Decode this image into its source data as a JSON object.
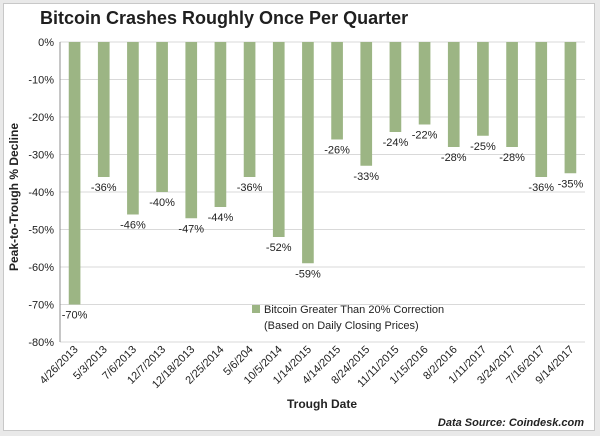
{
  "chart_data": {
    "type": "bar",
    "title": "Bitcoin Crashes Roughly Once Per Quarter",
    "xlabel": "Trough Date",
    "ylabel": "Peak-to-Trough % Decline",
    "source": "Data Source: Coindesk.com",
    "ylim": [
      -80,
      0
    ],
    "yticks": [
      0,
      -10,
      -20,
      -30,
      -40,
      -50,
      -60,
      -70,
      -80
    ],
    "ytick_suffix": "%",
    "grid": true,
    "bar_color": "#9cb584",
    "categories": [
      "4/26/2013",
      "5/3/2013",
      "7/6/2013",
      "12/7/2013",
      "12/18/2013",
      "2/25/2014",
      "5/6/204",
      "10/5/2014",
      "1/14/2015",
      "4/14/2015",
      "8/24/2015",
      "11/11/2015",
      "1/15/2016",
      "8/2/2016",
      "1/11/2017",
      "3/24/2017",
      "7/16/2017",
      "9/14/2017"
    ],
    "series": [
      {
        "name": "Bitcoin Greater Than 20% Correction",
        "values": [
          -70,
          -36,
          -46,
          -40,
          -47,
          -44,
          -36,
          -52,
          -59,
          -26,
          -33,
          -24,
          -22,
          -28,
          -25,
          -28,
          -36,
          -35
        ]
      }
    ],
    "data_labels": [
      "-70%",
      "-36%",
      "-46%",
      "-40%",
      "-47%",
      "-44%",
      "-36%",
      "-52%",
      "-59%",
      "-26%",
      "-33%",
      "-24%",
      "-22%",
      "-28%",
      "-25%",
      "-28%",
      "-36%",
      "-35%"
    ],
    "legend": {
      "position": "bottom-center-inside",
      "line1": "Bitcoin Greater Than 20% Correction",
      "line2": "(Based on Daily Closing Prices)"
    }
  }
}
